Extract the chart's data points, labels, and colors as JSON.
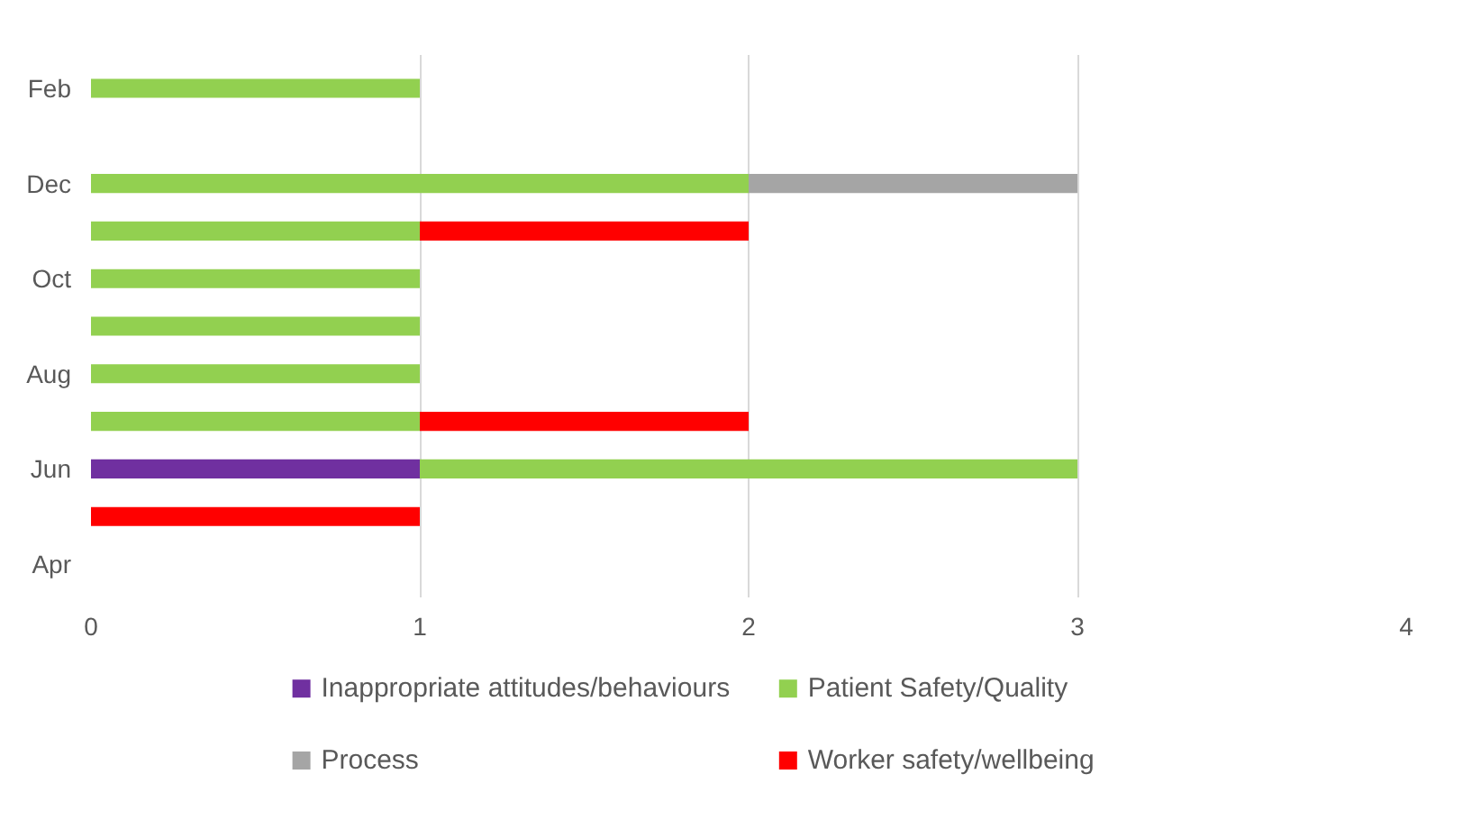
{
  "chart_data": {
    "type": "bar",
    "orientation": "horizontal",
    "stacked": true,
    "categories": [
      "Feb",
      null,
      "Dec",
      null,
      "Oct",
      null,
      "Aug",
      null,
      "Jun",
      null,
      "Apr"
    ],
    "series": [
      {
        "name": "Inappropriate attitudes/behaviours",
        "color": "#7030a0",
        "values": [
          null,
          null,
          null,
          null,
          null,
          null,
          null,
          null,
          1,
          null,
          null
        ]
      },
      {
        "name": "Patient Safety/Quality",
        "color": "#92d050",
        "values": [
          1,
          null,
          2,
          1,
          1,
          1,
          1,
          1,
          2,
          null,
          null
        ]
      },
      {
        "name": "Process",
        "color": "#a5a5a5",
        "values": [
          null,
          null,
          1,
          null,
          null,
          null,
          null,
          null,
          null,
          null,
          null
        ]
      },
      {
        "name": "Worker safety/wellbeing",
        "color": "#ff0000",
        "values": [
          null,
          null,
          null,
          1,
          null,
          null,
          null,
          1,
          null,
          1,
          null
        ]
      }
    ],
    "xlim": [
      0,
      4
    ],
    "xticks": [
      0,
      1,
      2,
      3,
      4
    ],
    "grid": "x",
    "legend": "bottom"
  }
}
